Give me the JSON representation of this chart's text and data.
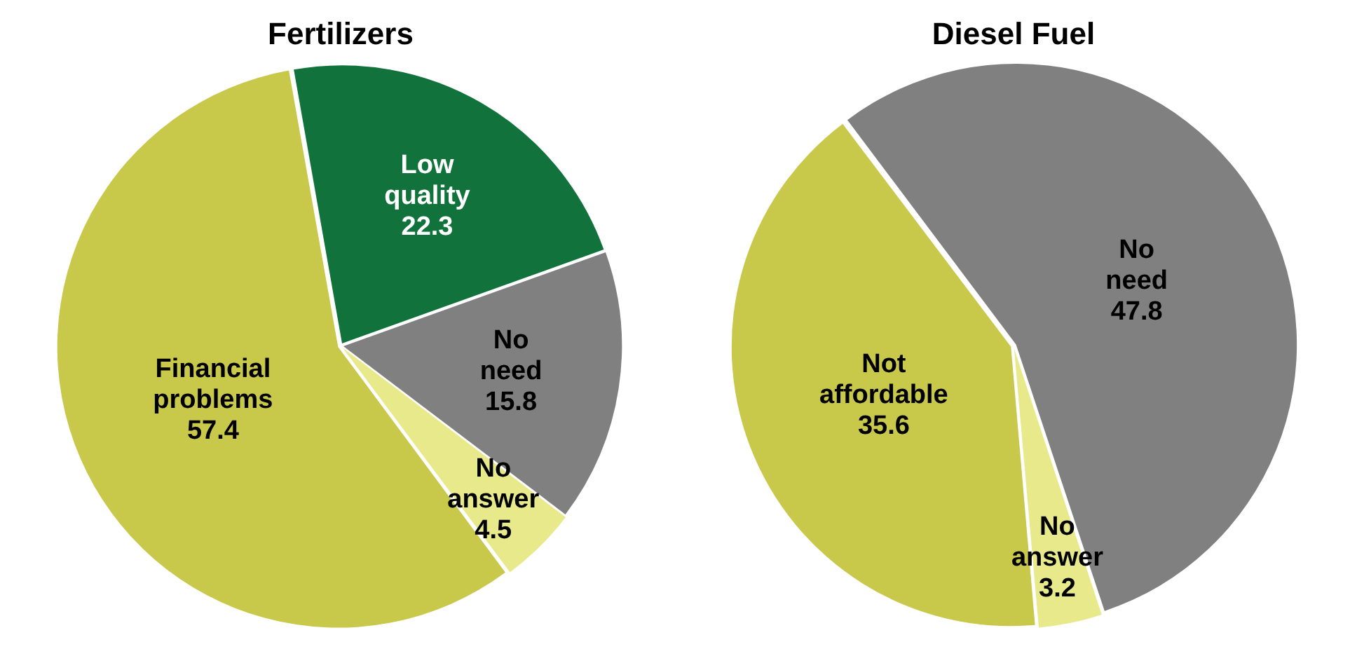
{
  "chart_data": [
    {
      "type": "pie",
      "title": "Fertilizers",
      "categories": [
        "Low quality",
        "No need",
        "No answer",
        "Financial problems"
      ],
      "values": [
        22.3,
        15.8,
        4.5,
        57.4
      ],
      "colors": [
        "#11733b",
        "#808080",
        "#e8e98a",
        "#c8c84b"
      ],
      "data_labels": true,
      "legend": false
    },
    {
      "type": "pie",
      "title": "Diesel Fuel",
      "categories": [
        "No need",
        "No answer",
        "Not affordable"
      ],
      "values": [
        47.8,
        3.2,
        35.6
      ],
      "colors": [
        "#808080",
        "#e8e98a",
        "#c8c84b"
      ],
      "data_labels": true,
      "legend": false
    }
  ]
}
